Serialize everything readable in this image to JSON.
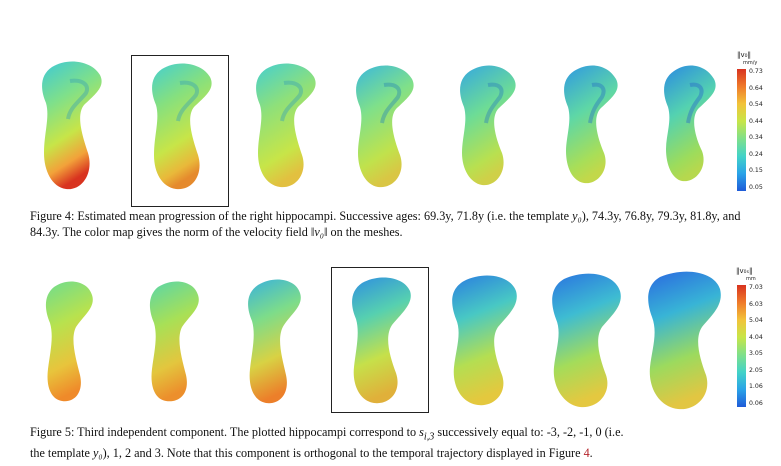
{
  "figure4": {
    "caption_pre": "Figure 4: Estimated mean progression of the right hippocampi. Successive ages: 69.3y, 71.8y (i.e. the template ",
    "caption_y0": "y₀",
    "caption_mid": "), 74.3y, 76.8y, 79.3y, 81.8y, and 84.3y. The color map gives the norm of the velocity field ",
    "caption_v0": "‖v₀‖",
    "caption_post": " on the meshes.",
    "colorbar": {
      "title": "‖v₀‖",
      "unit": "mm/y",
      "ticks": [
        "0.73",
        "0.64",
        "0.54",
        "0.44",
        "0.34",
        "0.24",
        "0.15",
        "0.05"
      ]
    },
    "meshes": [
      "mesh-1",
      "mesh-2",
      "mesh-3",
      "mesh-4",
      "mesh-5",
      "mesh-6",
      "mesh-7"
    ]
  },
  "figure5": {
    "caption_pre": "Figure 5: Third independent component. The plotted hippocampi correspond to ",
    "caption_s": "s",
    "caption_sub": "i,3",
    "caption_mid": " successively equal to: -3, -2, -1, 0 (i.e.",
    "caption_line2_pre": "the template ",
    "caption_y0": "y₀",
    "caption_line2_post": "), 1, 2 and 3. Note that this component is orthogonal to the temporal trajectory displayed in Figure ",
    "caption_ref": "4",
    "caption_end": ".",
    "colorbar": {
      "title": "‖v₀ₛ‖",
      "unit": "mm",
      "ticks": [
        "7.03",
        "6.03",
        "5.04",
        "4.04",
        "3.05",
        "2.05",
        "1.06",
        "0.06"
      ]
    },
    "meshes": [
      "mesh-1",
      "mesh-2",
      "mesh-3",
      "mesh-4",
      "mesh-5",
      "mesh-6",
      "mesh-7"
    ]
  },
  "colors": {
    "jet": [
      "#1f5bd8",
      "#2aa3e8",
      "#43d3c8",
      "#7fe08a",
      "#c7e548",
      "#f2c33a",
      "#ef7a2a",
      "#d8331f"
    ]
  }
}
